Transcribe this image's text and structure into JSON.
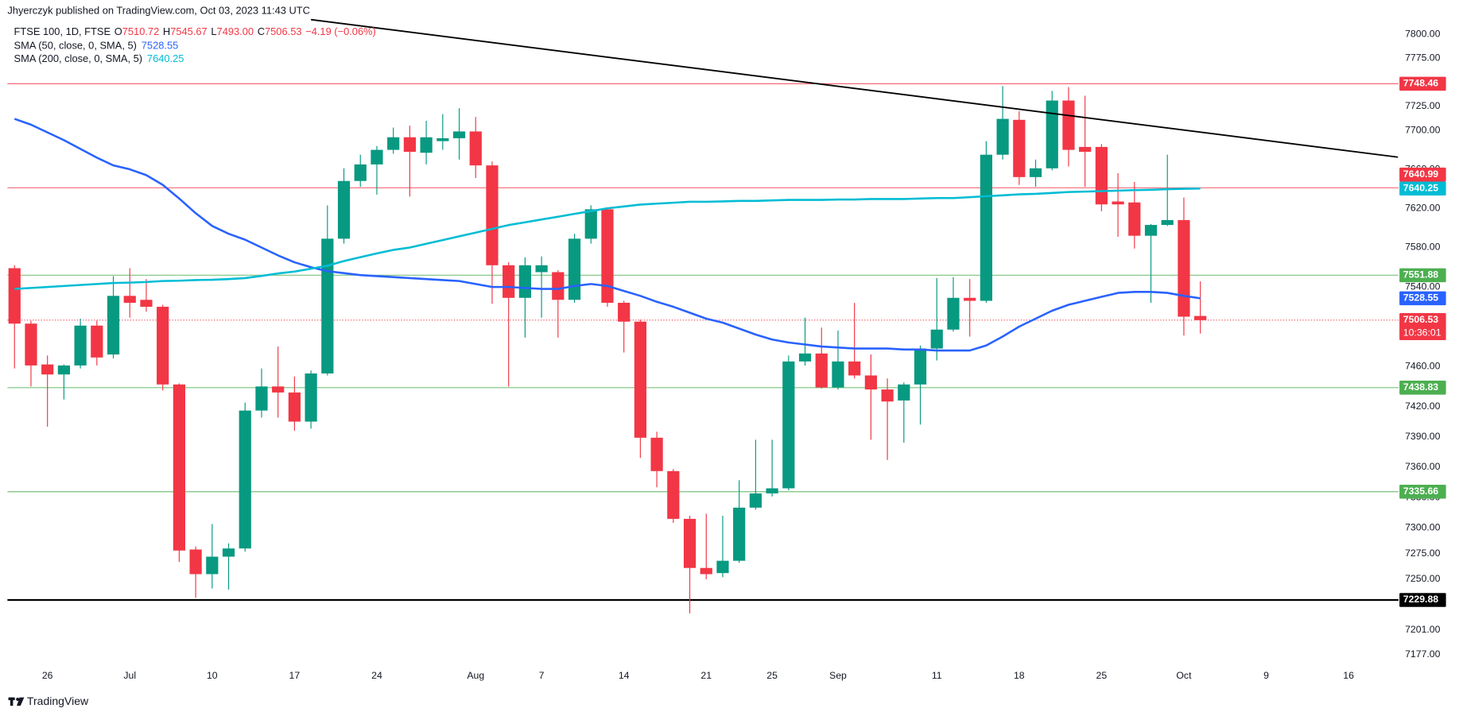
{
  "header": {
    "attribution": "Jhyerczyk published on TradingView.com, Oct 03, 2023 11:43 UTC",
    "logo": "TradingView"
  },
  "chart_data": {
    "type": "candlestick",
    "log_scale": true,
    "up_color": "#089981",
    "down_color": "#f23645",
    "legend": {
      "symbol": "FTSE 100, 1D, FTSE",
      "fields": [
        {
          "key": "O",
          "value": "7510.72"
        },
        {
          "key": "H",
          "value": "7545.67"
        },
        {
          "key": "L",
          "value": "7493.00"
        },
        {
          "key": "C",
          "value": "7506.53"
        }
      ],
      "change": "−4.19 (−0.06%)"
    },
    "countdown": "10:36:01",
    "categories": [
      null,
      null,
      "26",
      null,
      null,
      null,
      null,
      "Jul",
      null,
      null,
      null,
      null,
      "10",
      null,
      null,
      null,
      null,
      "17",
      null,
      null,
      null,
      null,
      "24",
      null,
      null,
      null,
      null,
      null,
      "Aug",
      null,
      null,
      null,
      "7",
      null,
      null,
      null,
      null,
      "14",
      null,
      null,
      null,
      null,
      "21",
      null,
      null,
      null,
      "25",
      null,
      null,
      null,
      "Sep",
      null,
      null,
      null,
      null,
      null,
      "11",
      null,
      null,
      null,
      null,
      "18",
      null,
      null,
      null,
      null,
      "25",
      null,
      null,
      null,
      null,
      "Oct",
      null,
      null,
      null,
      null,
      "9",
      null,
      null,
      null,
      null,
      "16",
      null,
      null,
      null
    ],
    "open": [
      7559,
      7503,
      7462,
      7452,
      7461,
      7501,
      7472,
      7531,
      7527,
      7520,
      7442,
      7279,
      7255,
      7272,
      7280,
      7416,
      7440,
      7434,
      7405,
      7453,
      7589,
      7648,
      7665,
      7680,
      7693,
      7677,
      7689,
      7692,
      7699,
      7664,
      7562,
      7529,
      7555,
      7555,
      7527,
      7589,
      7619,
      7524,
      7505,
      7389,
      7356,
      7309,
      7261,
      7256,
      7268,
      7320,
      7334,
      7339,
      7465,
      7473,
      7439,
      7465,
      7451,
      7437,
      7426,
      7442,
      7478,
      7497,
      7529,
      7526,
      7675,
      7711,
      7652,
      7661,
      7731,
      7683,
      7683,
      7627,
      7626,
      7592,
      7603,
      7608,
      7510.72,
      null,
      null,
      null,
      null,
      null,
      null,
      null,
      null,
      null,
      null,
      null,
      null
    ],
    "high": [
      7562,
      7506,
      7471,
      7462,
      7508,
      7506,
      7551,
      7559,
      7548,
      7522,
      7443,
      7282,
      7304,
      7285,
      7424,
      7458,
      7480,
      7450,
      7456,
      7623,
      7661,
      7675,
      7684,
      7703,
      7705,
      7710,
      7717,
      7723,
      7714,
      7668,
      7565,
      7570,
      7571,
      7557,
      7594,
      7623,
      7621,
      7526,
      7507,
      7395,
      7358,
      7312,
      7314,
      7312,
      7347,
      7387,
      7387,
      7471,
      7509,
      7499,
      7496,
      7524,
      7472,
      7448,
      7444,
      7481,
      7549,
      7550,
      7548,
      7689,
      7746,
      7720,
      7670,
      7741,
      7745,
      7736,
      7686,
      7656,
      7647,
      7604,
      7675,
      7631,
      7545.67,
      null,
      null,
      null,
      null,
      null,
      null,
      null,
      null,
      null,
      null,
      null,
      null
    ],
    "low": [
      7458,
      7440,
      7400,
      7427,
      7458,
      7461,
      7468,
      7509,
      7515,
      7436,
      7267,
      7232,
      7241,
      7240,
      7277,
      7409,
      7409,
      7396,
      7398,
      7451,
      7584,
      7642,
      7634,
      7676,
      7632,
      7665,
      7680,
      7670,
      7651,
      7523,
      7440,
      7489,
      7509,
      7489,
      7524,
      7584,
      7520,
      7474,
      7369,
      7340,
      7305,
      7217,
      7250,
      7252,
      7266,
      7318,
      7331,
      7337,
      7461,
      7438,
      7437,
      7448,
      7387,
      7367,
      7384,
      7402,
      7466,
      7495,
      7490,
      7524,
      7670,
      7644,
      7642,
      7659,
      7663,
      7642,
      7617,
      7591,
      7579,
      7524,
      7602,
      7491,
      7493,
      null,
      null,
      null,
      null,
      null,
      null,
      null,
      null,
      null,
      null,
      null,
      null
    ],
    "close": [
      7503,
      7461,
      7452,
      7461,
      7501,
      7469,
      7531,
      7524,
      7520,
      7442,
      7278,
      7255,
      7272,
      7280,
      7416,
      7440,
      7434,
      7405,
      7453,
      7589,
      7648,
      7665,
      7680,
      7693,
      7678,
      7693,
      7692,
      7699,
      7664,
      7562,
      7529,
      7562,
      7562,
      7527,
      7589,
      7619,
      7524,
      7505,
      7389,
      7356,
      7309,
      7261,
      7255,
      7268,
      7320,
      7334,
      7339,
      7465,
      7473,
      7439,
      7465,
      7451,
      7437,
      7425,
      7442,
      7478,
      7497,
      7529,
      7526,
      7675,
      7712,
      7652,
      7661,
      7731,
      7680,
      7678,
      7624,
      7624,
      7592,
      7603,
      7608,
      7510,
      7506.53,
      null,
      null,
      null,
      null,
      null,
      null,
      null,
      null,
      null,
      null,
      null,
      null
    ],
    "series": [
      {
        "name": "SMA (50, close, 0, SMA, 5)",
        "color": "#2962ff",
        "values": [
          7712,
          7706,
          7698,
          7690,
          7681,
          7672,
          7664,
          7660,
          7654,
          7644,
          7630,
          7615,
          7602,
          7594,
          7588,
          7580,
          7572,
          7565,
          7560,
          7556,
          7554,
          7552,
          7551,
          7550,
          7549,
          7548,
          7547,
          7546,
          7543,
          7540,
          7540,
          7539,
          7538,
          7538,
          7541,
          7543,
          7541,
          7536,
          7531,
          7525,
          7520,
          7514,
          7508,
          7504,
          7498,
          7492,
          7487,
          7484,
          7482,
          7480,
          7479,
          7478,
          7478,
          7478,
          7477,
          7477,
          7476,
          7476,
          7476,
          7481,
          7490,
          7500,
          7508,
          7516,
          7522,
          7526,
          7530,
          7534,
          7535,
          7535,
          7534,
          7531,
          7528.55,
          null,
          null,
          null,
          null,
          null,
          null,
          null,
          null,
          null,
          null,
          null,
          null
        ]
      },
      {
        "name": "SMA (200, close, 0, SMA, 5)",
        "color": "#00bcd4",
        "values": [
          7538,
          7539,
          7540,
          7541,
          7542,
          7543,
          7544,
          7544.4,
          7545,
          7546,
          7546.3,
          7547,
          7547.3,
          7548,
          7549,
          7551.2,
          7553.7,
          7555.6,
          7558.5,
          7561.5,
          7566.3,
          7570.2,
          7574,
          7577.6,
          7580,
          7583.8,
          7587.6,
          7591.4,
          7595.2,
          7599,
          7602.9,
          7605.7,
          7608.6,
          7611.4,
          7614.3,
          7617.1,
          7620,
          7621.9,
          7623.8,
          7624.8,
          7625.7,
          7626.7,
          7626.7,
          7627.1,
          7627.6,
          7627.6,
          7628.1,
          7628.6,
          7628.6,
          7628.6,
          7629,
          7629,
          7629.5,
          7629.5,
          7629.5,
          7630,
          7630.5,
          7630.5,
          7631.4,
          7632.4,
          7633.3,
          7634.3,
          7634.8,
          7635.7,
          7636.7,
          7637.1,
          7637.6,
          7638.1,
          7638.6,
          7639,
          7639.6,
          7640,
          7640.25,
          null,
          null,
          null,
          null,
          null,
          null,
          null,
          null,
          null,
          null,
          null,
          null
        ]
      }
    ],
    "levels": [
      {
        "value": 7748.46,
        "color": "#f23645"
      },
      {
        "value": 7640.99,
        "color": "#f23645"
      },
      {
        "value": 7551.88,
        "color": "#4caf50"
      },
      {
        "value": 7438.83,
        "color": "#4caf50"
      },
      {
        "value": 7335.66,
        "color": "#4caf50"
      },
      {
        "value": 7229.88,
        "color": "#000000"
      }
    ],
    "trendline": {
      "x": [
        18,
        84
      ],
      "values": [
        7815.4,
        7672.5
      ],
      "color": "#000000"
    },
    "ylim": [
      7167.2,
      7836
    ],
    "yticks": [
      {
        "value": 7177,
        "label": "7177.00"
      },
      {
        "value": 7201,
        "label": "7201.00"
      },
      {
        "value": 7250,
        "label": "7250.00"
      },
      {
        "value": 7275,
        "label": "7275.00"
      },
      {
        "value": 7300,
        "label": "7300.00"
      },
      {
        "value": 7330,
        "label": "7330.00"
      },
      {
        "value": 7360,
        "label": "7360.00"
      },
      {
        "value": 7390,
        "label": "7390.00"
      },
      {
        "value": 7420,
        "label": "7420.00"
      },
      {
        "value": 7460,
        "label": "7460.00"
      },
      {
        "value": 7540,
        "label": "7540.00"
      },
      {
        "value": 7580,
        "label": "7580.00"
      },
      {
        "value": 7620,
        "label": "7620.00"
      },
      {
        "value": 7660,
        "label": "7660.00"
      },
      {
        "value": 7700,
        "label": "7700.00"
      },
      {
        "value": 7725,
        "label": "7725.00"
      },
      {
        "value": 7775,
        "label": "7775.00"
      },
      {
        "value": 7800,
        "label": "7800.00"
      }
    ],
    "grid": false
  }
}
